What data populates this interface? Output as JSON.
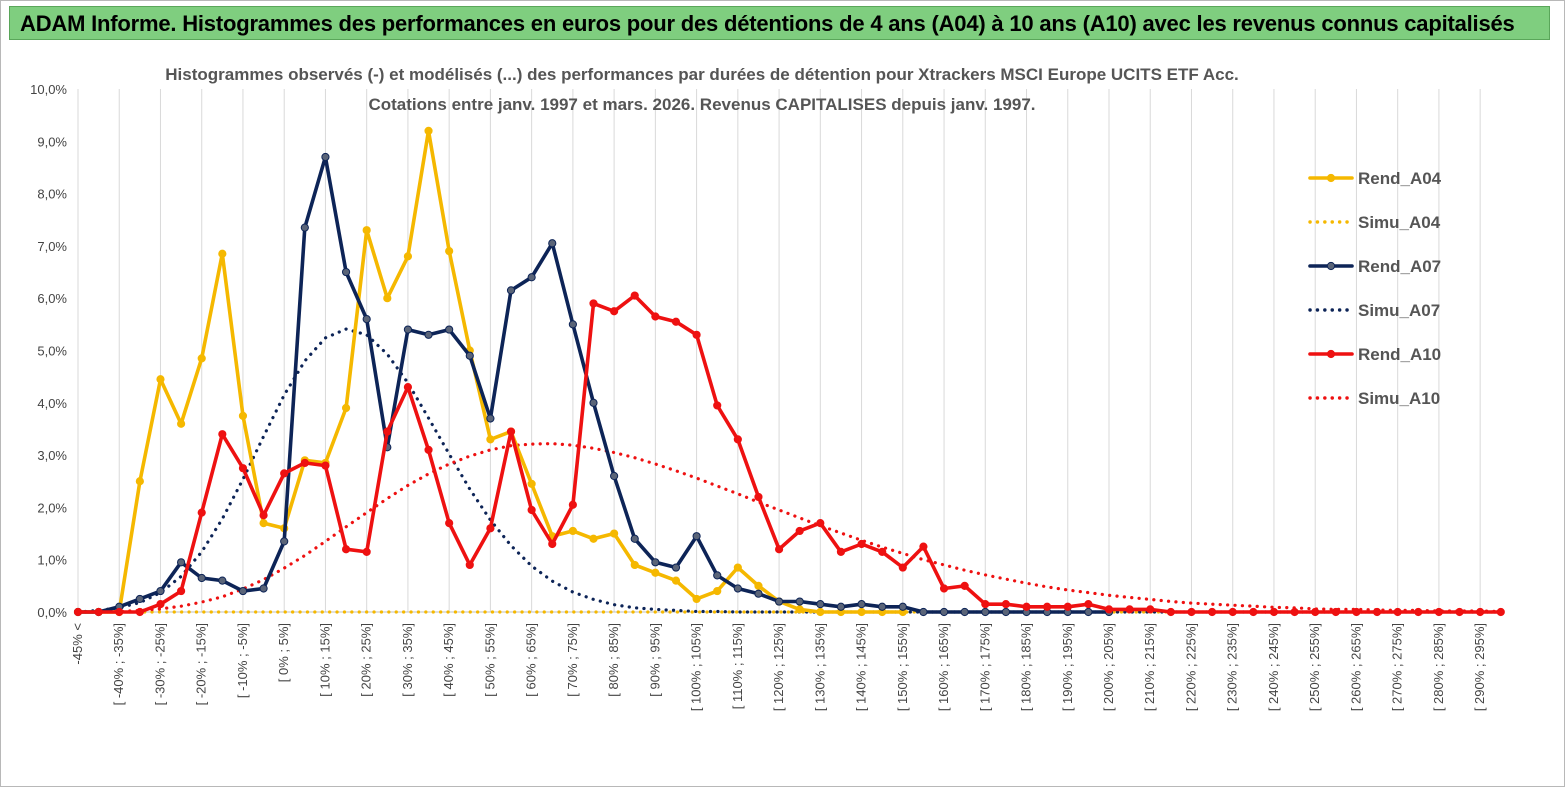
{
  "banner": {
    "title": "ADAM Informe. Histogrammes des performances en euros pour des détentions de 4 ans (A04) à 10 ans (A10) avec les revenus connus capitalisés"
  },
  "colors": {
    "banner_bg": "#7fce7f",
    "A04": "#f5b800",
    "A07": "#0d2457",
    "A10": "#ee1111"
  },
  "chart_data": {
    "type": "line",
    "title": "Histogrammes observés (-)  et modélisés (...) des performances par durées de détention pour Xtrackers MSCI Europe UCITS ETF Acc.",
    "subtitle": "Cotations entre janv. 1997 et mars. 2026. Revenus CAPITALISES depuis janv. 1997.",
    "xlabel": "",
    "ylabel": "",
    "ylim": [
      0,
      10
    ],
    "grid": "vertical",
    "legend_position": "right",
    "y_ticks": [
      "0,0%",
      "1,0%",
      "2,0%",
      "3,0%",
      "4,0%",
      "5,0%",
      "6,0%",
      "7,0%",
      "8,0%",
      "9,0%",
      "10,0%"
    ],
    "x_labels": [
      "-45% <",
      "[ -40% ; -35%]",
      "[ -30% ; -25%]",
      "[ -20% ; -15%]",
      "[ -10% ; -5%]",
      "[ 0% ; 5%]",
      "[ 10% ; 15%]",
      "[ 20% ; 25%]",
      "[ 30% ; 35%]",
      "[ 40% ; 45%]",
      "[ 50% ; 55%]",
      "[ 60% ; 65%]",
      "[ 70% ; 75%]",
      "[ 80% ; 85%]",
      "[ 90% ; 95%]",
      "[ 100% ; 105%]",
      "[ 110% ; 115%]",
      "[ 120% ; 125%]",
      "[ 130% ; 135%]",
      "[ 140% ; 145%]",
      "[ 150% ; 155%]",
      "[ 160% ; 165%]",
      "[ 170% ; 175%]",
      "[ 180% ; 185%]",
      "[ 190% ; 195%]",
      "[ 200% ; 205%]",
      "[ 210% ; 215%]",
      "[ 220% ; 225%]",
      "[ 230% ; 235%]",
      "[ 240% ; 245%]",
      "[ 250% ; 255%]",
      "[ 260% ; 265%]",
      "[ 270% ; 275%]",
      "[ 280% ; 285%]",
      "[ 290% ; 295%]"
    ],
    "x_label_every": 2,
    "series": [
      {
        "name": "Rend_A04",
        "color": "#f5b800",
        "style": "solid",
        "markers": true,
        "values": [
          0,
          0,
          0,
          2.5,
          4.45,
          3.6,
          4.85,
          6.85,
          3.75,
          1.7,
          1.6,
          2.9,
          2.85,
          3.9,
          7.3,
          6.0,
          6.8,
          9.2,
          6.9,
          5.0,
          3.3,
          3.45,
          2.45,
          1.45,
          1.55,
          1.4,
          1.5,
          0.9,
          0.75,
          0.6,
          0.25,
          0.4,
          0.85,
          0.5,
          0.2,
          0.05,
          0,
          0,
          0,
          0,
          0
        ]
      },
      {
        "name": "Simu_A04",
        "color": "#f5b800",
        "style": "dotted",
        "markers": false,
        "values": [
          0.0,
          0.0,
          0.0,
          0.0,
          0.0,
          0.0,
          0.0,
          0.0,
          0.0,
          0.0,
          0.0,
          0.0,
          0.0,
          0.0,
          0.0,
          0.0,
          0.0,
          0.0,
          0.0,
          0.0,
          0.0,
          0.0,
          0.0,
          0.0,
          0.0,
          0.0,
          0.0,
          0.0,
          0.0,
          0.0,
          0.0,
          0.0,
          0.0,
          0.0,
          0.0,
          0.0,
          0.0,
          0.0,
          0.0,
          0.0,
          0.0,
          0.0,
          0.0,
          0.0,
          0.0,
          0.0,
          0.0,
          0.0,
          0.0,
          0.0,
          0.0,
          0.0,
          0.0,
          0.0,
          0.0,
          0.0,
          0.0,
          0.0,
          0.0,
          0.0,
          0.0,
          0.0,
          0.0,
          0.0,
          0.0,
          0.0,
          0.0,
          0.0,
          0.0,
          0.0
        ]
      },
      {
        "name": "Rend_A07",
        "color": "#0d2457",
        "style": "solid",
        "markers": true,
        "values": [
          0,
          0,
          0.1,
          0.25,
          0.4,
          0.95,
          0.65,
          0.6,
          0.4,
          0.45,
          1.35,
          7.35,
          8.7,
          6.5,
          5.6,
          3.15,
          5.4,
          5.3,
          5.4,
          4.9,
          3.7,
          6.15,
          6.4,
          7.05,
          5.5,
          4.0,
          2.6,
          1.4,
          0.95,
          0.85,
          1.45,
          0.7,
          0.45,
          0.35,
          0.2,
          0.2,
          0.15,
          0.1,
          0.15,
          0.1,
          0.1,
          0,
          0,
          0,
          0,
          0,
          0,
          0,
          0,
          0,
          0
        ]
      },
      {
        "name": "Simu_A07",
        "color": "#0d2457",
        "style": "dotted",
        "markers": false,
        "values": [
          0.0,
          0.03,
          0.08,
          0.18,
          0.37,
          0.68,
          1.15,
          1.78,
          2.54,
          3.36,
          4.15,
          4.8,
          5.24,
          5.41,
          5.3,
          4.93,
          4.38,
          3.71,
          3.02,
          2.35,
          1.76,
          1.27,
          0.88,
          0.59,
          0.38,
          0.24,
          0.14,
          0.08,
          0.05,
          0.03,
          0.01,
          0.01,
          0.0,
          0.0,
          0.0,
          0.0,
          0.0,
          0.0,
          0.0,
          0.0,
          0.0,
          0.0,
          0.0,
          0.0,
          0.0,
          0.0,
          0.0,
          0.0,
          0.0,
          0.0,
          0.0,
          0.0,
          0.0,
          0.0,
          0.0,
          0.0,
          0.0,
          0.0,
          0.0,
          0.0,
          0.0,
          0.0,
          0.0,
          0.0,
          0.0,
          0.0,
          0.0,
          0.0,
          0.0,
          0.0
        ]
      },
      {
        "name": "Rend_A10",
        "color": "#ee1111",
        "style": "solid",
        "markers": true,
        "values": [
          0,
          0,
          0,
          0,
          0.15,
          0.4,
          1.9,
          3.4,
          2.75,
          1.85,
          2.65,
          2.85,
          2.8,
          1.2,
          1.15,
          3.45,
          4.3,
          3.1,
          1.7,
          0.9,
          1.6,
          3.45,
          1.95,
          1.3,
          2.05,
          5.9,
          5.75,
          6.05,
          5.65,
          5.55,
          5.3,
          3.95,
          3.3,
          2.2,
          1.2,
          1.55,
          1.7,
          1.15,
          1.3,
          1.15,
          0.85,
          1.25,
          0.45,
          0.5,
          0.15,
          0.15,
          0.1,
          0.1,
          0.1,
          0.15,
          0.05,
          0.05,
          0.05,
          0,
          0,
          0,
          0,
          0,
          0,
          0,
          0,
          0,
          0,
          0,
          0,
          0,
          0,
          0,
          0,
          0
        ]
      },
      {
        "name": "Simu_A10",
        "color": "#ee1111",
        "style": "dotted",
        "markers": false,
        "values": [
          0.0,
          0.0,
          0.01,
          0.03,
          0.06,
          0.11,
          0.19,
          0.29,
          0.44,
          0.62,
          0.84,
          1.08,
          1.35,
          1.63,
          1.9,
          2.17,
          2.42,
          2.64,
          2.83,
          2.98,
          3.1,
          3.18,
          3.21,
          3.22,
          3.19,
          3.13,
          3.05,
          2.95,
          2.83,
          2.7,
          2.56,
          2.41,
          2.26,
          2.1,
          1.95,
          1.8,
          1.65,
          1.51,
          1.37,
          1.24,
          1.12,
          1.0,
          0.9,
          0.8,
          0.71,
          0.63,
          0.55,
          0.48,
          0.42,
          0.37,
          0.32,
          0.28,
          0.24,
          0.2,
          0.17,
          0.15,
          0.13,
          0.11,
          0.09,
          0.08,
          0.06,
          0.05,
          0.05,
          0.04,
          0.03,
          0.03,
          0.02,
          0.02,
          0.02,
          0.01
        ]
      }
    ]
  }
}
